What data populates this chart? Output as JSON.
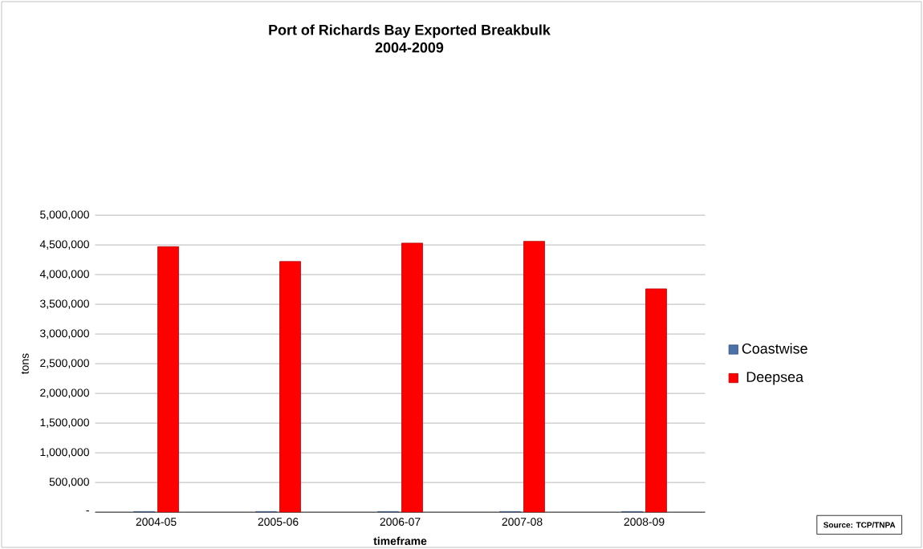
{
  "chart_data": {
    "type": "bar",
    "title": "Port of Richards  Bay  Exported Breakbulk",
    "subtitle": "2004-2009",
    "xlabel": "timeframe",
    "ylabel": "tons",
    "categories": [
      "2004-05",
      "2005-06",
      "2006-07",
      "2007-08",
      "2008-09"
    ],
    "series": [
      {
        "name": "Coastwise",
        "color": "#4a72a8",
        "values": [
          10000,
          10000,
          10000,
          10000,
          10000
        ]
      },
      {
        "name": "Deepsea",
        "color": "#ff0000",
        "values": [
          4470000,
          4220000,
          4530000,
          4560000,
          3760000
        ]
      }
    ],
    "ylim": [
      0,
      5000000
    ],
    "yticks": [
      {
        "value": 0,
        "label": "-"
      },
      {
        "value": 500000,
        "label": "500,000"
      },
      {
        "value": 1000000,
        "label": "1,000,000"
      },
      {
        "value": 1500000,
        "label": "1,500,000"
      },
      {
        "value": 2000000,
        "label": "2,000,000"
      },
      {
        "value": 2500000,
        "label": "2,500,000"
      },
      {
        "value": 3000000,
        "label": "3,000,000"
      },
      {
        "value": 3500000,
        "label": "3,500,000"
      },
      {
        "value": 4000000,
        "label": "4,000,000"
      },
      {
        "value": 4500000,
        "label": "4,500,000"
      },
      {
        "value": 5000000,
        "label": "5,000,000"
      }
    ],
    "grid": "y",
    "legend": "right",
    "annotations": [
      "Source: TCP/TNPA"
    ]
  }
}
